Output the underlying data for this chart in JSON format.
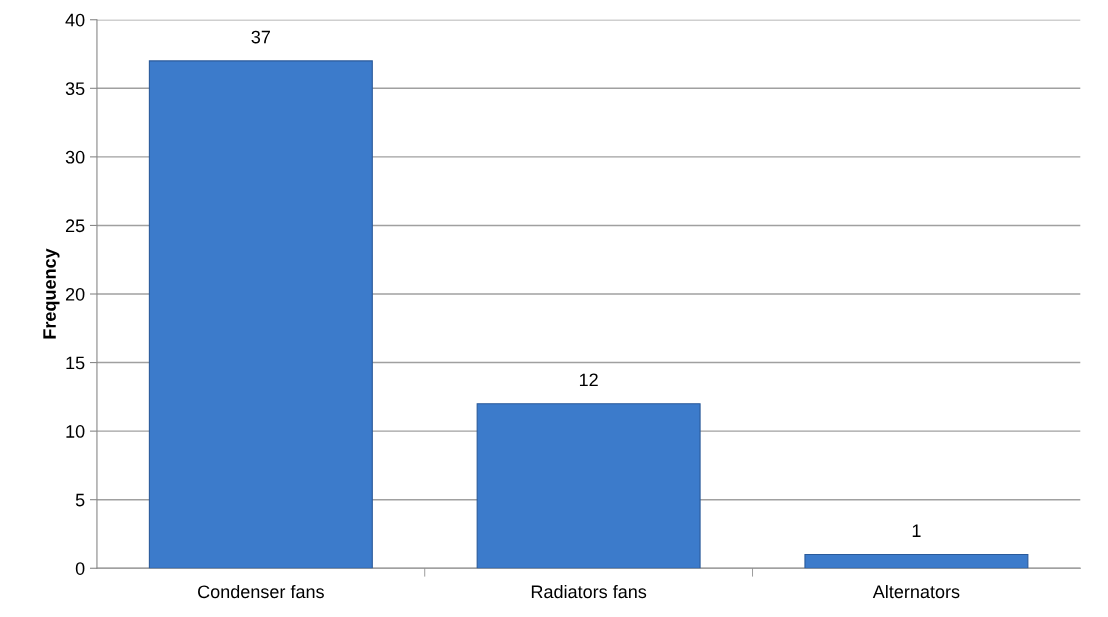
{
  "chart_data": {
    "type": "bar",
    "ylabel": "Frequency",
    "categories": [
      "Condenser fans",
      "Radiators fans",
      "Alternators"
    ],
    "values": [
      37,
      12,
      1
    ],
    "color": "#3c7bcb",
    "ylim": [
      0,
      40
    ],
    "yticks": [
      0,
      5,
      10,
      15,
      20,
      25,
      30,
      35,
      40
    ],
    "grid": "y",
    "data_labels": true
  }
}
